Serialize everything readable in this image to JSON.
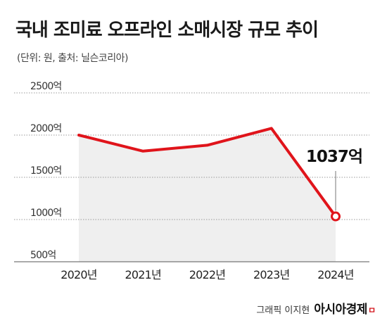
{
  "header": {
    "title": "국내 조미료 오프라인 소매시장 규모 추이",
    "subtitle": "(단위: 원, 출처: 닐슨코리아)"
  },
  "credit": {
    "graphic": "그래픽 이지현",
    "brand": "아시아경제",
    "brand_mark": "ㅁ"
  },
  "chart_data": {
    "type": "area",
    "x": [
      "2020년",
      "2021년",
      "2022년",
      "2023년",
      "2024년"
    ],
    "y_ticks": [
      {
        "value": 2500,
        "label": "2500억"
      },
      {
        "value": 2000,
        "label": "2000억"
      },
      {
        "value": 1500,
        "label": "1500억"
      },
      {
        "value": 1000,
        "label": "1000억"
      },
      {
        "value": 500,
        "label": "500억"
      }
    ],
    "ylim": [
      500,
      2500
    ],
    "series": [
      {
        "values": [
          2000,
          1810,
          1880,
          2080,
          1037
        ]
      }
    ],
    "annotations": [
      {
        "index": 4,
        "label": "1037억"
      }
    ],
    "grid": true,
    "line_color": "#e0141b",
    "fill_color": "#efefef"
  }
}
